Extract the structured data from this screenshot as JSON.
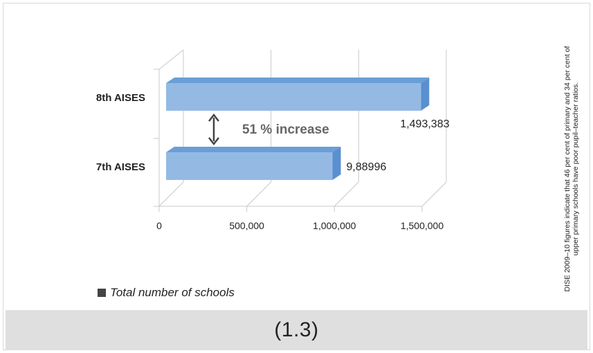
{
  "chart_data": {
    "type": "bar",
    "orientation": "horizontal",
    "style": "3d",
    "categories": [
      "8th AISES",
      "7th AISES"
    ],
    "series": [
      {
        "name": "Total number of schools",
        "values": [
          1493383,
          988996
        ],
        "color": "#94bae4"
      }
    ],
    "data_labels": [
      "1,493,383",
      "9,88996"
    ],
    "x_ticks": [
      {
        "value": 0,
        "label": "0"
      },
      {
        "value": 500000,
        "label": "500,000"
      },
      {
        "value": 1000000,
        "label": "1,000,000"
      },
      {
        "value": 1500000,
        "label": "1,500,000"
      }
    ],
    "xlim": [
      0,
      1500000
    ],
    "grid": true,
    "annotation": "51 % increase",
    "legend_label": "Total number of schools",
    "legend_position": "bottom-left"
  },
  "side_note": "DISE 2009–10 figures indicate that 46 per cent of primary and 34 per cent of upper primary schools have poor pupil–teacher ratios.",
  "figure_number": "(1.3)",
  "colors": {
    "bar_front": "#94bae4",
    "bar_top": "#6a9ed6",
    "bar_side": "#5a8fd0",
    "grid": "#c8c8c8",
    "arrow": "#444444",
    "annotation_text": "#666666",
    "footer_bg": "#dedfde"
  }
}
